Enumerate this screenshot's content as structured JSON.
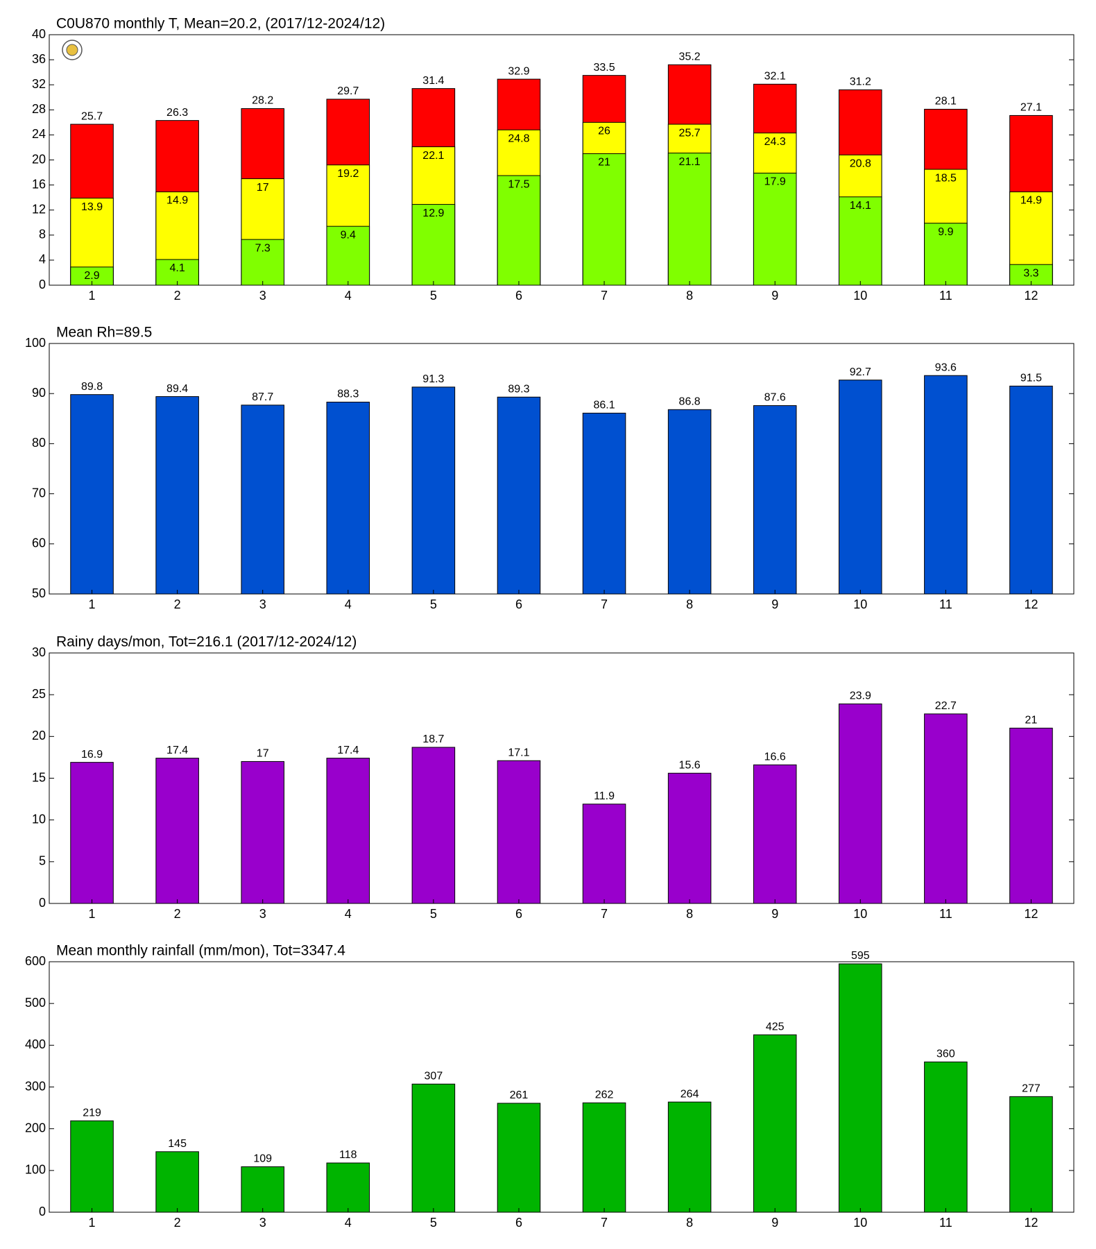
{
  "chart_data": [
    {
      "type": "bar",
      "title": "C0U870 monthly T, Mean=20.2, (2017/12-2024/12)",
      "categories": [
        "1",
        "2",
        "3",
        "4",
        "5",
        "6",
        "7",
        "8",
        "9",
        "10",
        "11",
        "12"
      ],
      "series": [
        {
          "color": "#ff0000",
          "values": [
            25.7,
            26.3,
            28.2,
            29.7,
            31.4,
            32.9,
            33.5,
            35.2,
            32.1,
            31.2,
            28.1,
            27.1
          ]
        },
        {
          "color": "#ffff00",
          "values": [
            13.9,
            14.9,
            17,
            19.2,
            22.1,
            24.8,
            26,
            25.7,
            24.3,
            20.8,
            18.5,
            14.9
          ]
        },
        {
          "color": "#80ff00",
          "values": [
            2.9,
            4.1,
            7.3,
            9.4,
            12.9,
            17.5,
            21,
            21.1,
            17.9,
            14.1,
            9.9,
            3.3
          ]
        }
      ],
      "ylim": [
        0,
        40
      ],
      "yticks": [
        0,
        4,
        8,
        12,
        16,
        20,
        24,
        28,
        32,
        36,
        40
      ]
    },
    {
      "type": "bar",
      "title": "Mean Rh=89.5",
      "categories": [
        "1",
        "2",
        "3",
        "4",
        "5",
        "6",
        "7",
        "8",
        "9",
        "10",
        "11",
        "12"
      ],
      "series": [
        {
          "color": "#0050d0",
          "values": [
            89.8,
            89.4,
            87.7,
            88.3,
            91.3,
            89.3,
            86.1,
            86.8,
            87.6,
            92.7,
            93.6,
            91.5
          ]
        }
      ],
      "ylim": [
        50,
        100
      ],
      "yticks": [
        50,
        60,
        70,
        80,
        90,
        100
      ]
    },
    {
      "type": "bar",
      "title": "Rainy days/mon, Tot=216.1 (2017/12-2024/12)",
      "categories": [
        "1",
        "2",
        "3",
        "4",
        "5",
        "6",
        "7",
        "8",
        "9",
        "10",
        "11",
        "12"
      ],
      "series": [
        {
          "color": "#9900cc",
          "values": [
            16.9,
            17.4,
            17,
            17.4,
            18.7,
            17.1,
            11.9,
            15.6,
            16.6,
            23.9,
            22.7,
            21
          ]
        }
      ],
      "ylim": [
        0,
        30
      ],
      "yticks": [
        0,
        5,
        10,
        15,
        20,
        25,
        30
      ]
    },
    {
      "type": "bar",
      "title": "Mean monthly rainfall (mm/mon), Tot=3347.4",
      "categories": [
        "1",
        "2",
        "3",
        "4",
        "5",
        "6",
        "7",
        "8",
        "9",
        "10",
        "11",
        "12"
      ],
      "series": [
        {
          "color": "#00b400",
          "values": [
            219,
            145,
            109,
            118,
            307,
            261,
            262,
            264,
            425,
            595,
            360,
            277
          ]
        }
      ],
      "ylim": [
        0,
        600
      ],
      "yticks": [
        0,
        100,
        200,
        300,
        400,
        500,
        600
      ]
    }
  ]
}
